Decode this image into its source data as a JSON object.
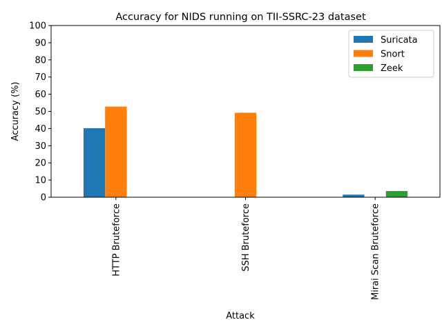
{
  "chart_data": {
    "type": "bar",
    "title": "Accuracy for NIDS running on TII-SSRC-23 dataset",
    "xlabel": "Attack",
    "ylabel": "Accuracy (%)",
    "ylim": [
      0,
      100
    ],
    "yticks": [
      0,
      10,
      20,
      30,
      40,
      50,
      60,
      70,
      80,
      90,
      100
    ],
    "categories": [
      "HTTP Bruteforce",
      "SSH Bruteforce",
      "Mirai Scan Bruteforce"
    ],
    "series": [
      {
        "name": "Suricata",
        "color": "#1f77b4",
        "values": [
          40.2,
          0,
          1.5
        ]
      },
      {
        "name": "Snort",
        "color": "#ff7f0e",
        "values": [
          52.8,
          49.2,
          0
        ]
      },
      {
        "name": "Zeek",
        "color": "#2ca02c",
        "values": [
          0,
          0,
          3.6
        ]
      }
    ],
    "legend_position": "top-right",
    "grid": false
  }
}
